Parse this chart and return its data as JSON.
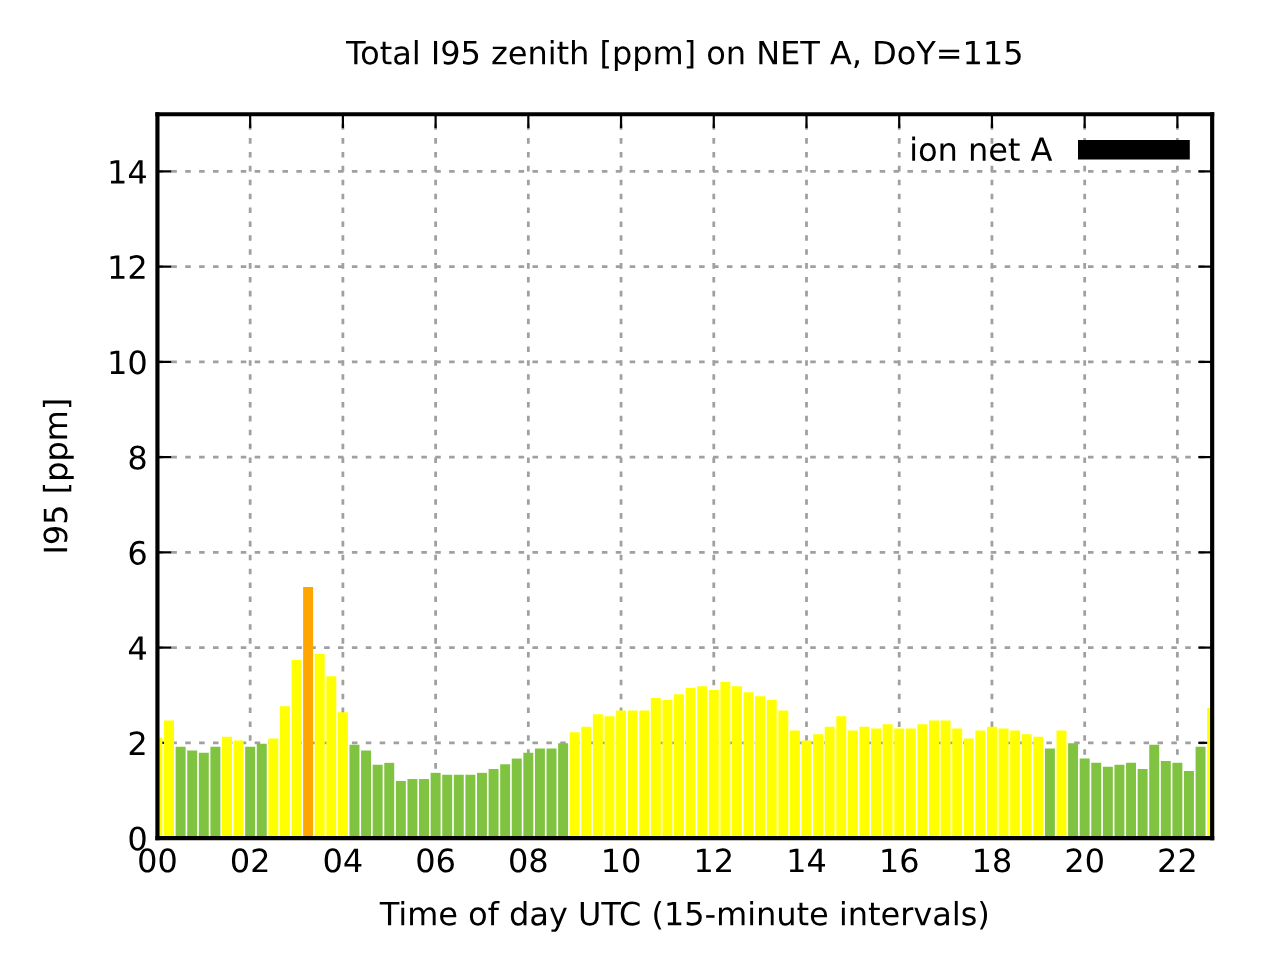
{
  "chart_data": {
    "type": "bar",
    "title": "Total I95 zenith [ppm] on NET A, DoY=115",
    "xlabel": "Time of day UTC (15-minute intervals)",
    "ylabel": "I95 [ppm]",
    "x": [
      0,
      0.25,
      0.5,
      0.75,
      1,
      1.25,
      1.5,
      1.75,
      2,
      2.25,
      2.5,
      2.75,
      3,
      3.25,
      3.5,
      3.75,
      4,
      4.25,
      4.5,
      4.75,
      5,
      5.25,
      5.5,
      5.75,
      6,
      6.25,
      6.5,
      6.75,
      7,
      7.25,
      7.5,
      7.75,
      8,
      8.25,
      8.5,
      8.75,
      9,
      9.25,
      9.5,
      9.75,
      10,
      10.25,
      10.5,
      10.75,
      11,
      11.25,
      11.5,
      11.75,
      12,
      12.25,
      12.5,
      12.75,
      13,
      13.25,
      13.5,
      13.75,
      14,
      14.25,
      14.5,
      14.75,
      15,
      15.25,
      15.5,
      15.75,
      16,
      16.25,
      16.5,
      16.75,
      17,
      17.25,
      17.5,
      17.75,
      18,
      18.25,
      18.5,
      18.75,
      19,
      19.25,
      19.5,
      19.75,
      20,
      20.25,
      20.5,
      20.75,
      21,
      21.25,
      21.5,
      21.75,
      22,
      22.25,
      22.5,
      22.75
    ],
    "series": [
      {
        "name": "ion net A",
        "color": "#000000",
        "values": [
          2.1,
          2.47,
          1.92,
          1.84,
          1.79,
          1.92,
          2.13,
          2.05,
          1.92,
          1.98,
          2.09,
          2.77,
          3.74,
          5.27,
          3.87,
          3.4,
          2.64,
          1.96,
          1.84,
          1.54,
          1.58,
          1.2,
          1.24,
          1.24,
          1.37,
          1.33,
          1.33,
          1.33,
          1.37,
          1.45,
          1.55,
          1.67,
          1.79,
          1.88,
          1.88,
          1.99,
          2.22,
          2.34,
          2.6,
          2.56,
          2.68,
          2.68,
          2.68,
          2.94,
          2.9,
          3.02,
          3.15,
          3.19,
          3.11,
          3.28,
          3.19,
          3.06,
          2.98,
          2.9,
          2.68,
          2.26,
          2.05,
          2.18,
          2.34,
          2.56,
          2.26,
          2.34,
          2.3,
          2.39,
          2.3,
          2.3,
          2.39,
          2.47,
          2.47,
          2.3,
          2.09,
          2.26,
          2.34,
          2.3,
          2.26,
          2.18,
          2.13,
          1.88,
          2.26,
          1.99,
          1.67,
          1.58,
          1.5,
          1.54,
          1.58,
          1.45,
          1.96,
          1.62,
          1.58,
          1.41,
          1.92,
          2.73
        ],
        "colors": [
          "#ffff00",
          "#ffff00",
          "#80c341",
          "#80c341",
          "#80c341",
          "#80c341",
          "#ffff00",
          "#ffff00",
          "#80c341",
          "#80c341",
          "#ffff00",
          "#ffff00",
          "#ffff00",
          "#ffa500",
          "#ffff00",
          "#ffff00",
          "#ffff00",
          "#80c341",
          "#80c341",
          "#80c341",
          "#80c341",
          "#80c341",
          "#80c341",
          "#80c341",
          "#80c341",
          "#80c341",
          "#80c341",
          "#80c341",
          "#80c341",
          "#80c341",
          "#80c341",
          "#80c341",
          "#80c341",
          "#80c341",
          "#80c341",
          "#80c341",
          "#ffff00",
          "#ffff00",
          "#ffff00",
          "#ffff00",
          "#ffff00",
          "#ffff00",
          "#ffff00",
          "#ffff00",
          "#ffff00",
          "#ffff00",
          "#ffff00",
          "#ffff00",
          "#ffff00",
          "#ffff00",
          "#ffff00",
          "#ffff00",
          "#ffff00",
          "#ffff00",
          "#ffff00",
          "#ffff00",
          "#ffff00",
          "#ffff00",
          "#ffff00",
          "#ffff00",
          "#ffff00",
          "#ffff00",
          "#ffff00",
          "#ffff00",
          "#ffff00",
          "#ffff00",
          "#ffff00",
          "#ffff00",
          "#ffff00",
          "#ffff00",
          "#ffff00",
          "#ffff00",
          "#ffff00",
          "#ffff00",
          "#ffff00",
          "#ffff00",
          "#ffff00",
          "#80c341",
          "#ffff00",
          "#80c341",
          "#80c341",
          "#80c341",
          "#80c341",
          "#80c341",
          "#80c341",
          "#80c341",
          "#80c341",
          "#80c341",
          "#80c341",
          "#80c341",
          "#80c341",
          "#ffff00"
        ]
      }
    ],
    "xlim": [
      0,
      22.75
    ],
    "xticks": [
      {
        "value": 0,
        "label": "00"
      },
      {
        "value": 2,
        "label": "02"
      },
      {
        "value": 4,
        "label": "04"
      },
      {
        "value": 6,
        "label": "06"
      },
      {
        "value": 8,
        "label": "08"
      },
      {
        "value": 10,
        "label": "10"
      },
      {
        "value": 12,
        "label": "12"
      },
      {
        "value": 14,
        "label": "14"
      },
      {
        "value": 16,
        "label": "16"
      },
      {
        "value": 18,
        "label": "18"
      },
      {
        "value": 20,
        "label": "20"
      },
      {
        "value": 22,
        "label": "22"
      }
    ],
    "ylim": [
      0,
      15.2
    ],
    "yticks": [
      0,
      2,
      4,
      6,
      8,
      10,
      12,
      14
    ],
    "grid": true,
    "legend": "top right"
  }
}
